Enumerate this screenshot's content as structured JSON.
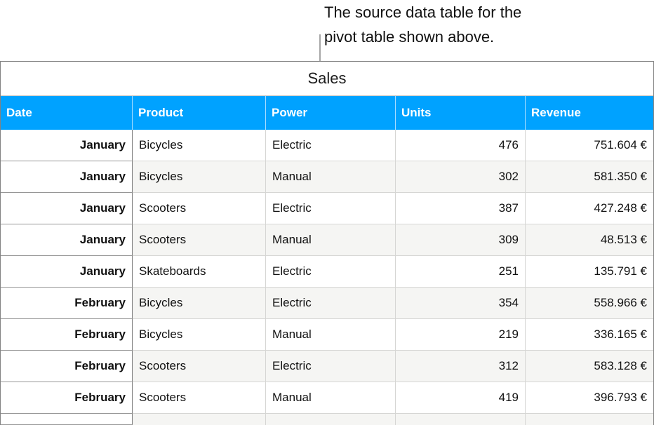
{
  "annotation": {
    "line1": "The source data table for the",
    "line2": "pivot table shown above."
  },
  "table": {
    "title": "Sales",
    "headers": [
      "Date",
      "Product",
      "Power",
      "Units",
      "Revenue"
    ],
    "rows": [
      {
        "date": "January",
        "product": "Bicycles",
        "power": "Electric",
        "units": "476",
        "revenue": "751.604 €"
      },
      {
        "date": "January",
        "product": "Bicycles",
        "power": "Manual",
        "units": "302",
        "revenue": "581.350 €"
      },
      {
        "date": "January",
        "product": "Scooters",
        "power": "Electric",
        "units": "387",
        "revenue": "427.248 €"
      },
      {
        "date": "January",
        "product": "Scooters",
        "power": "Manual",
        "units": "309",
        "revenue": "48.513 €"
      },
      {
        "date": "January",
        "product": "Skateboards",
        "power": "Electric",
        "units": "251",
        "revenue": "135.791 €"
      },
      {
        "date": "February",
        "product": "Bicycles",
        "power": "Electric",
        "units": "354",
        "revenue": "558.966 €"
      },
      {
        "date": "February",
        "product": "Bicycles",
        "power": "Manual",
        "units": "219",
        "revenue": "336.165 €"
      },
      {
        "date": "February",
        "product": "Scooters",
        "power": "Electric",
        "units": "312",
        "revenue": "583.128 €"
      },
      {
        "date": "February",
        "product": "Scooters",
        "power": "Manual",
        "units": "419",
        "revenue": "396.793 €"
      }
    ]
  },
  "colors": {
    "header_bg": "#00a2ff",
    "header_text": "#ffffff",
    "alt_row_bg": "#f5f5f3",
    "grid_light": "#d6d6d4",
    "grid_dark": "#828282"
  }
}
